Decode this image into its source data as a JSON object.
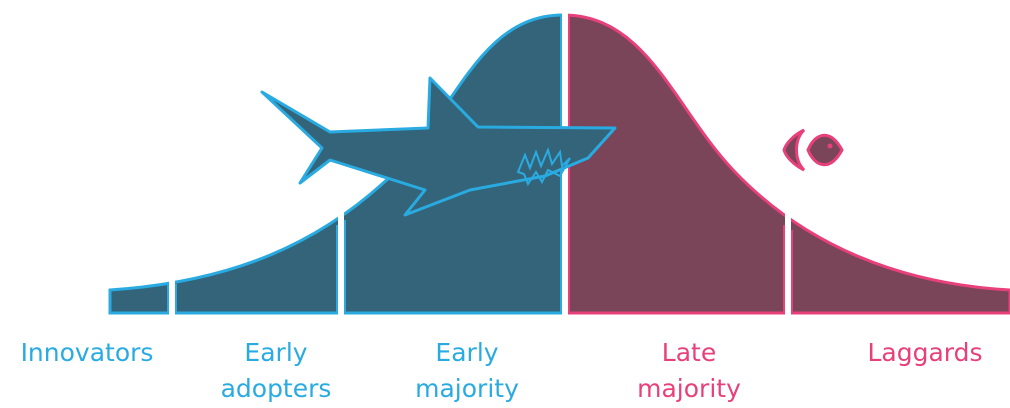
{
  "labels": [
    {
      "lines": [
        "Innovators"
      ]
    },
    {
      "lines": [
        "Early",
        "adopters"
      ]
    },
    {
      "lines": [
        "Early",
        "majority"
      ]
    },
    {
      "lines": [
        "Late",
        "majority"
      ]
    },
    {
      "lines": [
        "Laggards"
      ]
    }
  ]
}
